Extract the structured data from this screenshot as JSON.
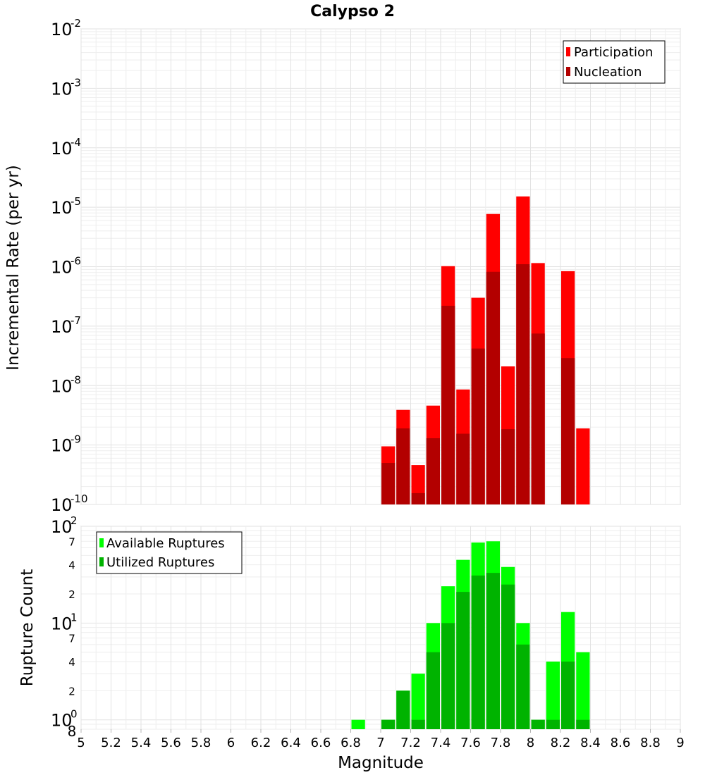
{
  "chart_data": {
    "title": "Calypso 2",
    "xlabel": "Magnitude",
    "xlim": [
      5,
      9
    ],
    "xticks": [
      "5",
      "5.2",
      "5.4",
      "5.6",
      "5.8",
      "6",
      "6.2",
      "6.4",
      "6.6",
      "6.8",
      "7",
      "7.2",
      "7.4",
      "7.6",
      "7.8",
      "8",
      "8.2",
      "8.4",
      "8.6",
      "8.8",
      "9"
    ],
    "bin_width": 0.1,
    "colors": {
      "participation": "#ff0000",
      "nucleation": "#b30000",
      "available": "#00ff00",
      "utilized": "#00b300"
    },
    "panels": [
      {
        "type": "bar",
        "ylabel": "Incremental Rate (per yr)",
        "yscale": "log",
        "ylim": [
          1e-10,
          0.01
        ],
        "decade_labels": [
          {
            "base": "10",
            "exp": "-10"
          },
          {
            "base": "10",
            "exp": "-9"
          },
          {
            "base": "10",
            "exp": "-8"
          },
          {
            "base": "10",
            "exp": "-7"
          },
          {
            "base": "10",
            "exp": "-6"
          },
          {
            "base": "10",
            "exp": "-5"
          },
          {
            "base": "10",
            "exp": "-4"
          },
          {
            "base": "10",
            "exp": "-3"
          },
          {
            "base": "10",
            "exp": "-2"
          }
        ],
        "legend_position": "top-right",
        "x": [
          7.05,
          7.15,
          7.25,
          7.35,
          7.45,
          7.55,
          7.65,
          7.75,
          7.85,
          7.95,
          8.05,
          8.15,
          8.25,
          8.35
        ],
        "series": [
          {
            "name": "Participation",
            "values": [
              9.5e-10,
              3.9e-09,
              4.6e-10,
              4.6e-09,
              1.02e-06,
              8.6e-09,
              3e-07,
              7.7e-06,
              2.1e-08,
              1.52e-05,
              1.15e-06,
              0,
              8.4e-07,
              1.9e-09
            ]
          },
          {
            "name": "Nucleation",
            "values": [
              5e-10,
              1.9e-09,
              1.55e-10,
              1.3e-09,
              2.2e-07,
              1.55e-09,
              4.2e-08,
              8.2e-07,
              1.85e-09,
              1.1e-06,
              7.5e-08,
              0,
              2.9e-08,
              0
            ]
          }
        ]
      },
      {
        "type": "bar",
        "ylabel": "Rupture Count",
        "yscale": "log",
        "ylim": [
          0.8,
          100
        ],
        "decade_labels": [
          {
            "base": "10",
            "exp": "0"
          },
          {
            "base": "10",
            "exp": "1"
          },
          {
            "base": "10",
            "exp": "2"
          }
        ],
        "minor_labels": [
          {
            "value": 0.8,
            "label": "8"
          },
          {
            "value": 2,
            "label": "2"
          },
          {
            "value": 4,
            "label": "4"
          },
          {
            "value": 7,
            "label": "7"
          },
          {
            "value": 20,
            "label": "2"
          },
          {
            "value": 40,
            "label": "4"
          },
          {
            "value": 70,
            "label": "7"
          }
        ],
        "legend_position": "top-left",
        "x": [
          6.85,
          7.05,
          7.15,
          7.25,
          7.35,
          7.45,
          7.55,
          7.65,
          7.75,
          7.85,
          7.95,
          8.05,
          8.15,
          8.25,
          8.35
        ],
        "series": [
          {
            "name": "Available Ruptures",
            "values": [
              1,
              1,
              2,
              3,
              10,
              24,
              45,
              68,
              70,
              38,
              10,
              1,
              4,
              13,
              5
            ]
          },
          {
            "name": "Utilized Ruptures",
            "values": [
              0,
              1,
              2,
              1,
              5,
              10,
              21,
              31,
              33,
              25,
              6,
              1,
              1,
              4,
              1
            ]
          }
        ]
      }
    ]
  }
}
